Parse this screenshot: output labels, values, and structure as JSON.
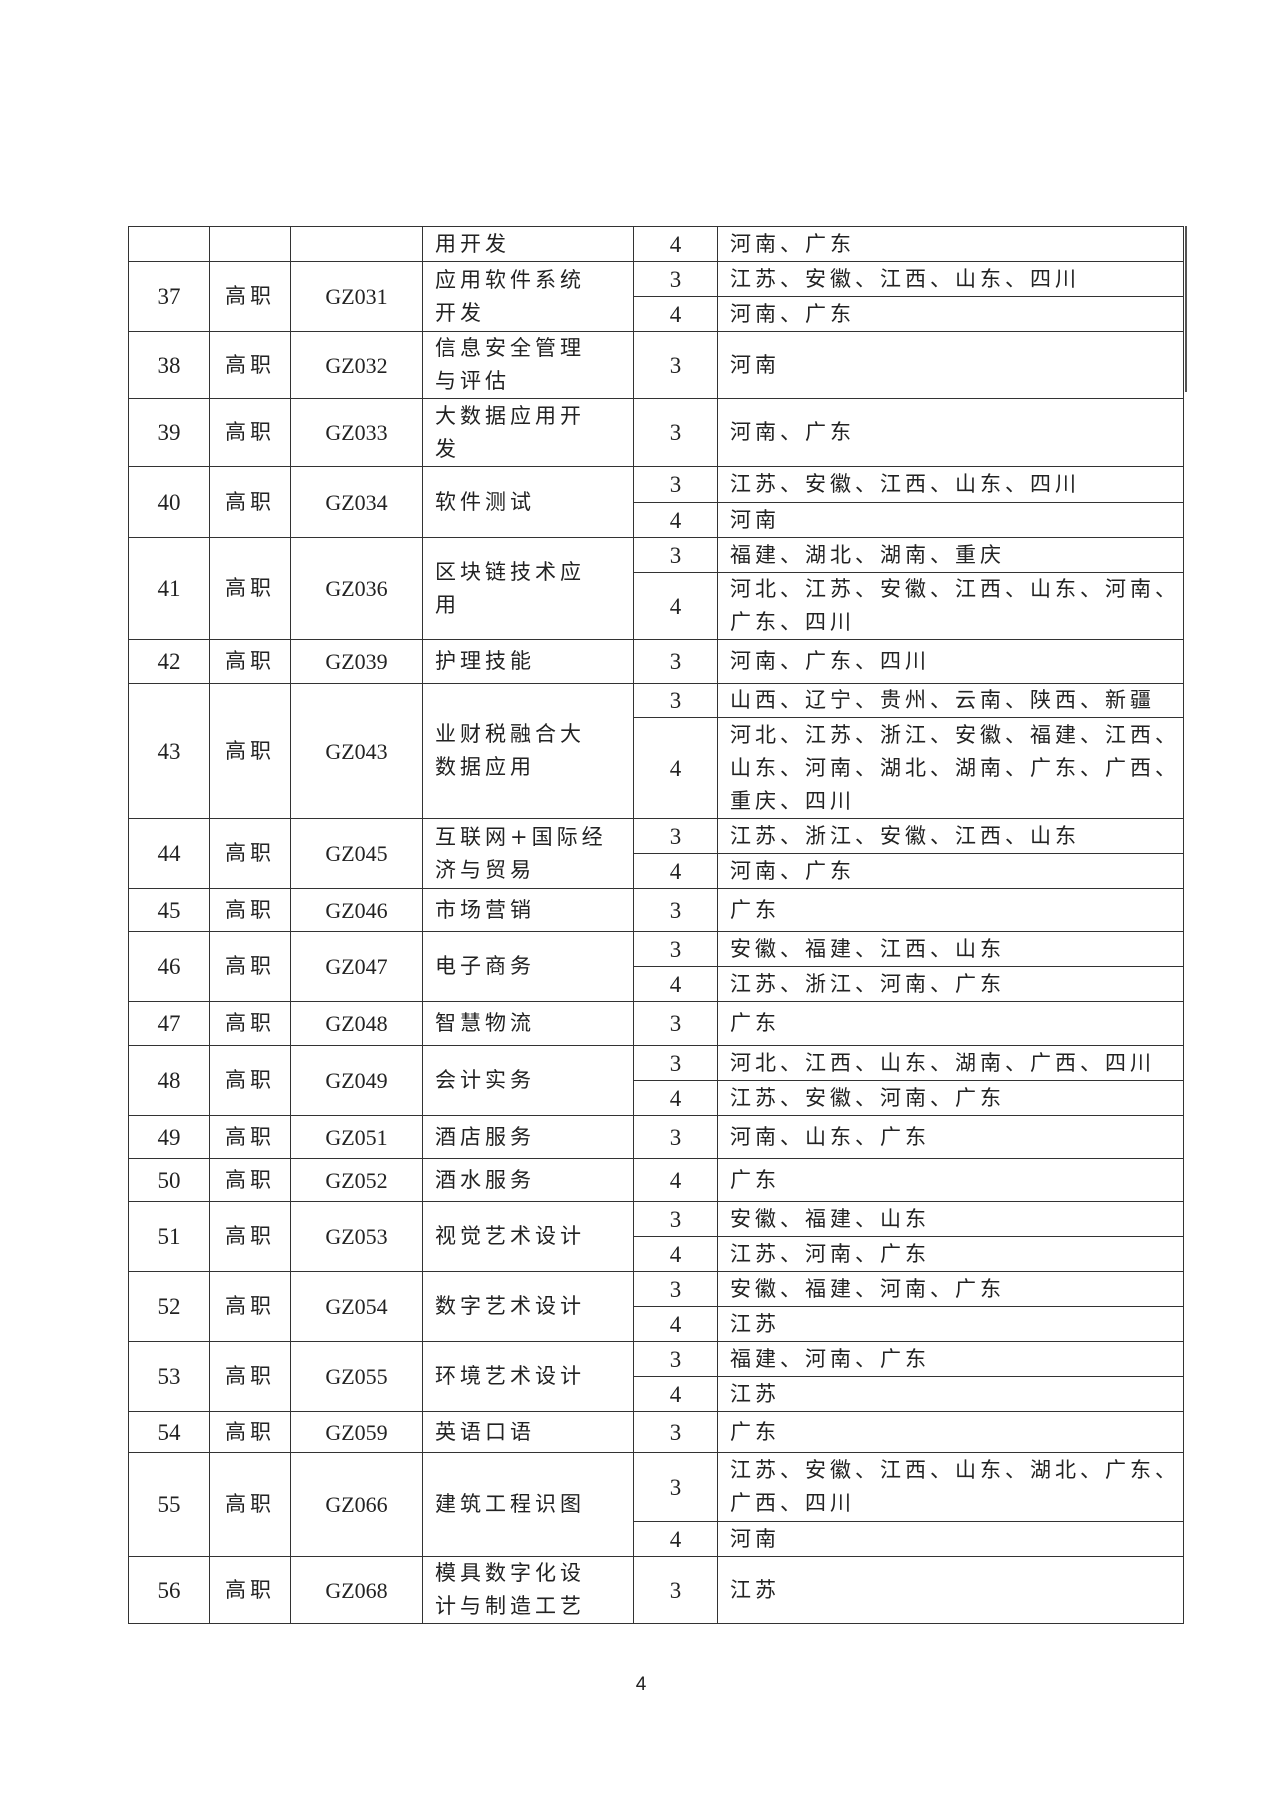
{
  "page_number": "4",
  "table": {
    "rows": [
      {
        "no": "",
        "level": "",
        "code": "",
        "name": "用开发",
        "entries": [
          {
            "years": "4",
            "provinces": "河南、广东"
          }
        ]
      },
      {
        "no": "37",
        "level": "高职",
        "code": "GZ031",
        "name": "应用软件系统\n开发",
        "entries": [
          {
            "years": "3",
            "provinces": "江苏、安徽、江西、山东、四川"
          },
          {
            "years": "4",
            "provinces": "河南、广东"
          }
        ]
      },
      {
        "no": "38",
        "level": "高职",
        "code": "GZ032",
        "name": "信息安全管理\n与评估",
        "entries": [
          {
            "years": "3",
            "provinces": "河南"
          }
        ]
      },
      {
        "no": "39",
        "level": "高职",
        "code": "GZ033",
        "name": "大数据应用开\n发",
        "entries": [
          {
            "years": "3",
            "provinces": "河南、广东"
          }
        ]
      },
      {
        "no": "40",
        "level": "高职",
        "code": "GZ034",
        "name": "软件测试",
        "entries": [
          {
            "years": "3",
            "provinces": "江苏、安徽、江西、山东、四川"
          },
          {
            "years": "4",
            "provinces": "河南"
          }
        ]
      },
      {
        "no": "41",
        "level": "高职",
        "code": "GZ036",
        "name": "区块链技术应\n用",
        "entries": [
          {
            "years": "3",
            "provinces": "福建、湖北、湖南、重庆"
          },
          {
            "years": "4",
            "provinces": "河北、江苏、安徽、江西、山东、河南、\n广东、四川"
          }
        ]
      },
      {
        "no": "42",
        "level": "高职",
        "code": "GZ039",
        "name": "护理技能",
        "entries": [
          {
            "years": "3",
            "provinces": "河南、广东、四川"
          }
        ]
      },
      {
        "no": "43",
        "level": "高职",
        "code": "GZ043",
        "name": "业财税融合大\n数据应用",
        "entries": [
          {
            "years": "3",
            "provinces": "山西、辽宁、贵州、云南、陕西、新疆"
          },
          {
            "years": "4",
            "provinces": "河北、江苏、浙江、安徽、福建、江西、\n山东、河南、湖北、湖南、广东、广西、\n重庆、四川"
          }
        ]
      },
      {
        "no": "44",
        "level": "高职",
        "code": "GZ045",
        "name": "互联网+国际经\n济与贸易",
        "entries": [
          {
            "years": "3",
            "provinces": "江苏、浙江、安徽、江西、山东"
          },
          {
            "years": "4",
            "provinces": "河南、广东"
          }
        ]
      },
      {
        "no": "45",
        "level": "高职",
        "code": "GZ046",
        "name": "市场营销",
        "entries": [
          {
            "years": "3",
            "provinces": "广东"
          }
        ]
      },
      {
        "no": "46",
        "level": "高职",
        "code": "GZ047",
        "name": "电子商务",
        "entries": [
          {
            "years": "3",
            "provinces": "安徽、福建、江西、山东"
          },
          {
            "years": "4",
            "provinces": "江苏、浙江、河南、广东"
          }
        ]
      },
      {
        "no": "47",
        "level": "高职",
        "code": "GZ048",
        "name": "智慧物流",
        "entries": [
          {
            "years": "3",
            "provinces": "广东"
          }
        ]
      },
      {
        "no": "48",
        "level": "高职",
        "code": "GZ049",
        "name": "会计实务",
        "entries": [
          {
            "years": "3",
            "provinces": "河北、江西、山东、湖南、广西、四川"
          },
          {
            "years": "4",
            "provinces": "江苏、安徽、河南、广东"
          }
        ]
      },
      {
        "no": "49",
        "level": "高职",
        "code": "GZ051",
        "name": "酒店服务",
        "entries": [
          {
            "years": "3",
            "provinces": "河南、山东、广东"
          }
        ]
      },
      {
        "no": "50",
        "level": "高职",
        "code": "GZ052",
        "name": "酒水服务",
        "entries": [
          {
            "years": "4",
            "provinces": "广东"
          }
        ]
      },
      {
        "no": "51",
        "level": "高职",
        "code": "GZ053",
        "name": "视觉艺术设计",
        "entries": [
          {
            "years": "3",
            "provinces": "安徽、福建、山东"
          },
          {
            "years": "4",
            "provinces": "江苏、河南、广东"
          }
        ]
      },
      {
        "no": "52",
        "level": "高职",
        "code": "GZ054",
        "name": "数字艺术设计",
        "entries": [
          {
            "years": "3",
            "provinces": "安徽、福建、河南、广东"
          },
          {
            "years": "4",
            "provinces": "江苏"
          }
        ]
      },
      {
        "no": "53",
        "level": "高职",
        "code": "GZ055",
        "name": "环境艺术设计",
        "entries": [
          {
            "years": "3",
            "provinces": "福建、河南、广东"
          },
          {
            "years": "4",
            "provinces": "江苏"
          }
        ]
      },
      {
        "no": "54",
        "level": "高职",
        "code": "GZ059",
        "name": "英语口语",
        "entries": [
          {
            "years": "3",
            "provinces": "广东"
          }
        ]
      },
      {
        "no": "55",
        "level": "高职",
        "code": "GZ066",
        "name": "建筑工程识图",
        "entries": [
          {
            "years": "3",
            "provinces": "江苏、安徽、江西、山东、湖北、广东、\n广西、四川"
          },
          {
            "years": "4",
            "provinces": "河南"
          }
        ]
      },
      {
        "no": "56",
        "level": "高职",
        "code": "GZ068",
        "name": "模具数字化设\n计与制造工艺",
        "entries": [
          {
            "years": "3",
            "provinces": "江苏"
          }
        ]
      }
    ]
  }
}
